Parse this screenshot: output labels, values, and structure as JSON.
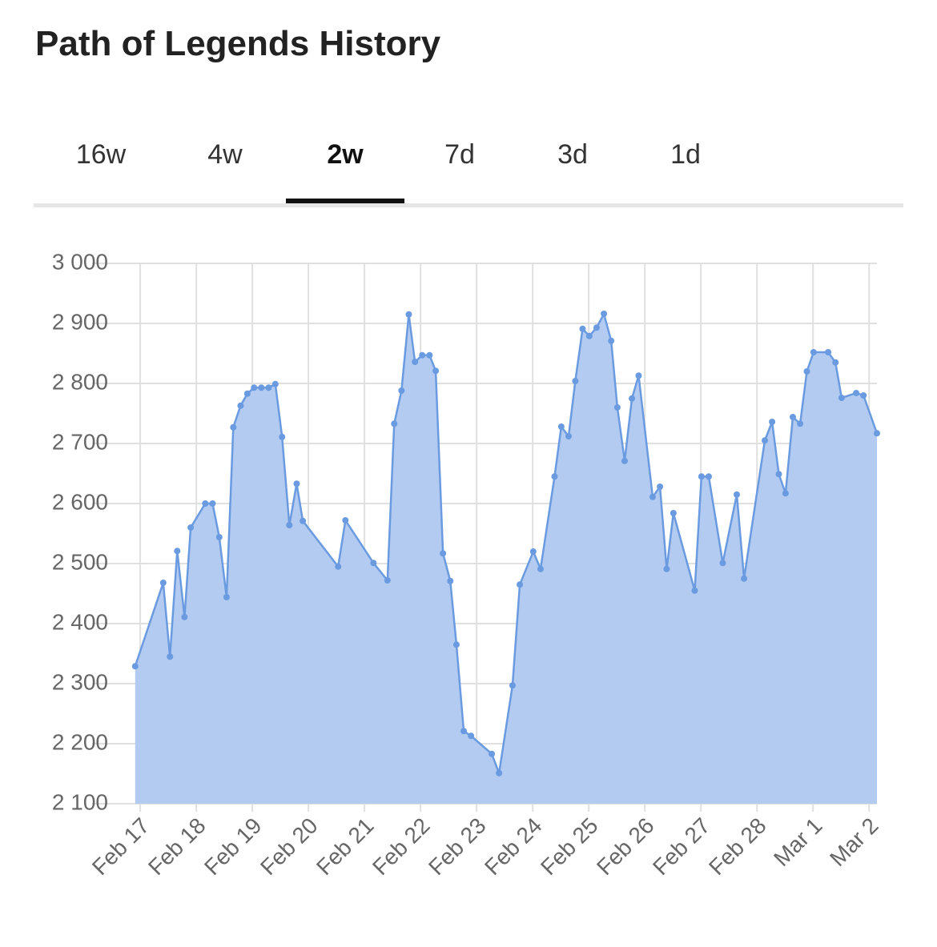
{
  "header": {
    "title": "Path of Legends History"
  },
  "tabs": [
    "16w",
    "4w",
    "2w",
    "7d",
    "3d",
    "1d"
  ],
  "chart_data": {
    "type": "area",
    "x": [
      -0.09,
      0.41,
      0.53,
      0.66,
      0.79,
      0.9,
      1.16,
      1.29,
      1.41,
      1.54,
      1.66,
      1.79,
      1.91,
      2.03,
      2.16,
      2.29,
      2.41,
      2.53,
      2.66,
      2.79,
      2.9,
      3.53,
      3.66,
      4.16,
      4.41,
      4.53,
      4.66,
      4.79,
      4.9,
      5.03,
      5.16,
      5.27,
      5.4,
      5.53,
      5.64,
      5.77,
      5.9,
      6.27,
      6.4,
      6.64,
      6.77,
      7.01,
      7.14,
      7.39,
      7.51,
      7.64,
      7.76,
      7.89,
      8.01,
      8.14,
      8.27,
      8.4,
      8.51,
      8.64,
      8.77,
      8.89,
      9.14,
      9.27,
      9.39,
      9.51,
      9.89,
      10.01,
      10.14,
      10.39,
      10.64,
      10.77,
      11.14,
      11.27,
      11.39,
      11.51,
      11.64,
      11.77,
      11.89,
      12.01,
      12.27,
      12.4,
      12.51,
      12.77,
      12.9,
      13.14
    ],
    "series": [
      {
        "color": "#6a9be0",
        "fill": "#b3cbf0",
        "values": [
          2329,
          2468,
          2345,
          2521,
          2411,
          2560,
          2600,
          2600,
          2544,
          2444,
          2727,
          2763,
          2783,
          2793,
          2793,
          2793,
          2799,
          2711,
          2564,
          2633,
          2571,
          2495,
          2572,
          2501,
          2472,
          2733,
          2788,
          2915,
          2836,
          2847,
          2847,
          2821,
          2517,
          2471,
          2365,
          2221,
          2213,
          2183,
          2151,
          2297,
          2465,
          2520,
          2491,
          2645,
          2728,
          2712,
          2804,
          2891,
          2879,
          2893,
          2916,
          2871,
          2760,
          2671,
          2775,
          2813,
          2611,
          2628,
          2491,
          2584,
          2455,
          2645,
          2645,
          2501,
          2615,
          2475,
          2705,
          2736,
          2649,
          2617,
          2744,
          2733,
          2820,
          2852,
          2852,
          2835,
          2776,
          2784,
          2780,
          2717
        ]
      }
    ],
    "xlim": [
      -0.43,
      13.14
    ],
    "xticks": [
      {
        "value": 0,
        "label": "Feb 17"
      },
      {
        "value": 1,
        "label": "Feb 18"
      },
      {
        "value": 2,
        "label": "Feb 19"
      },
      {
        "value": 3,
        "label": "Feb 20"
      },
      {
        "value": 4,
        "label": "Feb 21"
      },
      {
        "value": 5,
        "label": "Feb 22"
      },
      {
        "value": 6,
        "label": "Feb 23"
      },
      {
        "value": 7,
        "label": "Feb 24"
      },
      {
        "value": 8,
        "label": "Feb 25"
      },
      {
        "value": 9,
        "label": "Feb 26"
      },
      {
        "value": 10,
        "label": "Feb 27"
      },
      {
        "value": 11,
        "label": "Feb 28"
      },
      {
        "value": 12,
        "label": "Mar 1"
      },
      {
        "value": 13,
        "label": "Mar 2"
      }
    ],
    "ylim": [
      2100,
      3000
    ],
    "yticks": [
      {
        "value": 2100,
        "label": "2 100"
      },
      {
        "value": 2200,
        "label": "2 200"
      },
      {
        "value": 2300,
        "label": "2 300"
      },
      {
        "value": 2400,
        "label": "2 400"
      },
      {
        "value": 2500,
        "label": "2 500"
      },
      {
        "value": 2600,
        "label": "2 600"
      },
      {
        "value": 2700,
        "label": "2 700"
      },
      {
        "value": 2800,
        "label": "2 800"
      },
      {
        "value": 2900,
        "label": "2 900"
      },
      {
        "value": 3000,
        "label": "3 000"
      }
    ],
    "grid": true
  }
}
